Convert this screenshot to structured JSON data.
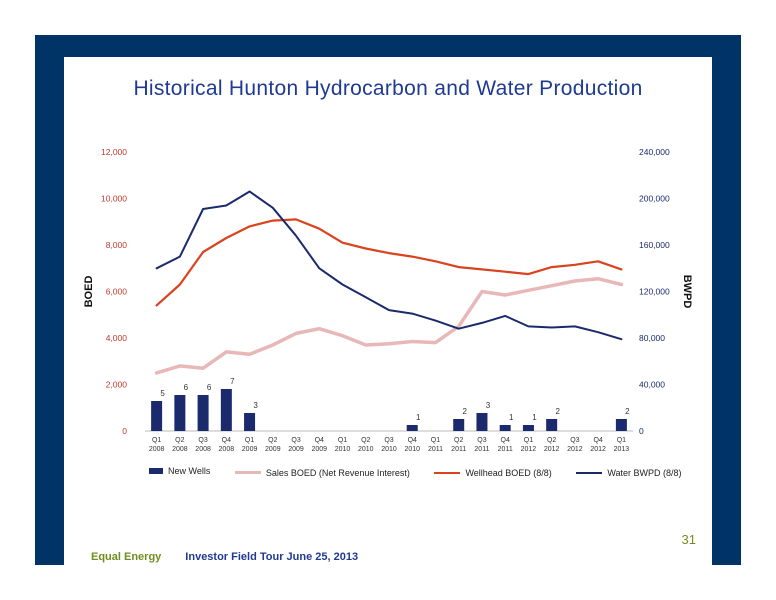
{
  "slide": {
    "title": "Historical Hunton Hydrocarbon and Water Production",
    "page_number": "31",
    "footer_company": "Equal Energy",
    "footer_event": "Investor Field Tour June 25, 2013"
  },
  "colors": {
    "frame": "#003366",
    "new_wells": "#1a2a6c",
    "sales_boed": "#e8b7b7",
    "wellhead_boed": "#d9431e",
    "water_bwpd": "#1a2a6c",
    "left_axis_text": "#c0392b",
    "right_axis_text": "#1a2a6c"
  },
  "chart_data": {
    "type": "bar+line",
    "title": "",
    "ylabel": "BOED",
    "y2label": "BWPD",
    "ylim": [
      0,
      12000
    ],
    "y2lim": [
      0,
      240000
    ],
    "yticks": [
      "0",
      "2,000",
      "4,000",
      "6,000",
      "8,000",
      "10,000",
      "12,000"
    ],
    "y2ticks": [
      "0",
      "40,000",
      "80,000",
      "120,000",
      "160,000",
      "200,000",
      "240,000"
    ],
    "categories": [
      [
        "Q1",
        "2008"
      ],
      [
        "Q2",
        "2008"
      ],
      [
        "Q3",
        "2008"
      ],
      [
        "Q4",
        "2008"
      ],
      [
        "Q1",
        "2009"
      ],
      [
        "Q2",
        "2009"
      ],
      [
        "Q3",
        "2009"
      ],
      [
        "Q4",
        "2009"
      ],
      [
        "Q1",
        "2010"
      ],
      [
        "Q2",
        "2010"
      ],
      [
        "Q3",
        "2010"
      ],
      [
        "Q4",
        "2010"
      ],
      [
        "Q1",
        "2011"
      ],
      [
        "Q2",
        "2011"
      ],
      [
        "Q3",
        "2011"
      ],
      [
        "Q4",
        "2011"
      ],
      [
        "Q1",
        "2012"
      ],
      [
        "Q2",
        "2012"
      ],
      [
        "Q3",
        "2012"
      ],
      [
        "Q4",
        "2012"
      ],
      [
        "Q1",
        "2013"
      ]
    ],
    "legend_position": "bottom",
    "series": [
      {
        "name": "New Wells",
        "type": "bar",
        "axis": "count",
        "values": [
          5,
          6,
          6,
          7,
          3,
          0,
          0,
          0,
          0,
          0,
          0,
          1,
          0,
          2,
          3,
          1,
          1,
          2,
          0,
          0,
          2
        ],
        "labels": [
          "5",
          "6",
          "6",
          "7",
          "3",
          "",
          "",
          "",
          "",
          "",
          "",
          "1",
          "",
          "2",
          "3",
          "1",
          "1",
          "2",
          "",
          "",
          "2"
        ]
      },
      {
        "name": "Sales BOED (Net Revenue Interest)",
        "type": "line",
        "axis": "left",
        "values": [
          2500,
          2800,
          2700,
          3400,
          3300,
          3700,
          4200,
          4400,
          4100,
          3700,
          3750,
          3850,
          3800,
          4500,
          6000,
          5850,
          6050,
          6250,
          6450,
          6550,
          6300
        ]
      },
      {
        "name": "Wellhead BOED (8/8)",
        "type": "line",
        "axis": "left",
        "values": [
          5400,
          6300,
          7700,
          8300,
          8800,
          9050,
          9100,
          8700,
          8100,
          7850,
          7650,
          7500,
          7300,
          7050,
          6950,
          6850,
          6750,
          7050,
          7150,
          7300,
          6950
        ]
      },
      {
        "name": "Water BWPD (8/8)",
        "type": "line",
        "axis": "right",
        "values": [
          140000,
          150000,
          191000,
          194000,
          206000,
          192000,
          168000,
          140000,
          126000,
          115000,
          104000,
          101000,
          95000,
          88000,
          93000,
          99000,
          90000,
          89000,
          90000,
          85000,
          79000
        ]
      }
    ]
  }
}
